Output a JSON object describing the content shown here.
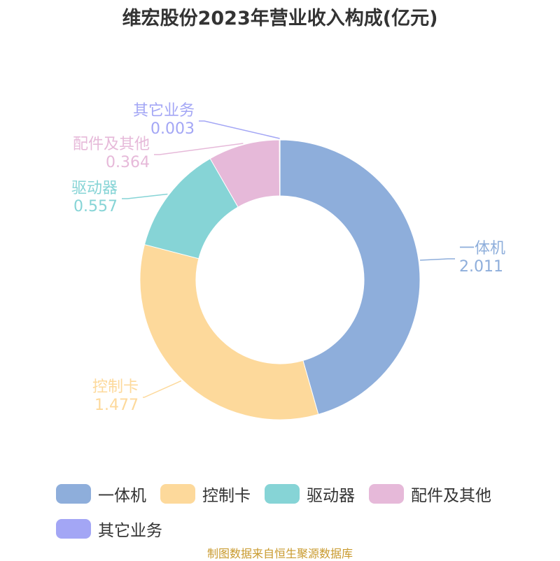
{
  "chart_data": {
    "type": "pie",
    "title": "维宏股份2023年营业收入构成(亿元)",
    "series": [
      {
        "name": "一体机",
        "value": 2.011,
        "value_label": "2.011",
        "color": "#8eaedb"
      },
      {
        "name": "控制卡",
        "value": 1.477,
        "value_label": "1.477",
        "color": "#fdd99b"
      },
      {
        "name": "驱动器",
        "value": 0.557,
        "value_label": "0.557",
        "color": "#86d4d6"
      },
      {
        "name": "配件及其他",
        "value": 0.364,
        "value_label": "0.364",
        "color": "#e6b9d9"
      },
      {
        "name": "其它业务",
        "value": 0.003,
        "value_label": "0.003",
        "color": "#a3a6f5"
      }
    ],
    "legend_position": "bottom"
  },
  "source_note": "制图数据来自恒生聚源数据库"
}
